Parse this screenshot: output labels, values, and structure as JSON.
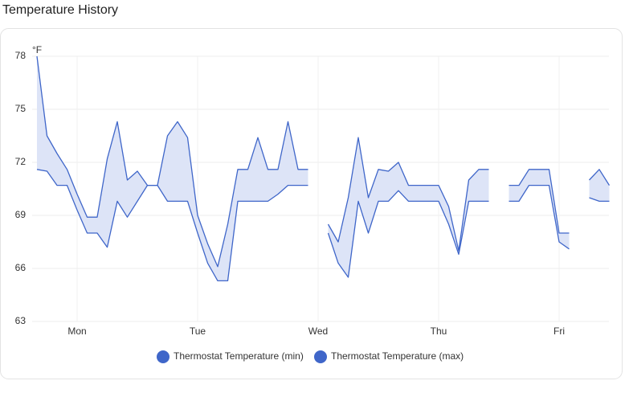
{
  "chart_data": {
    "type": "range-line",
    "title": "Temperature History",
    "y_label": "°F",
    "categories": [
      null,
      null,
      null,
      null,
      "Mon",
      null,
      null,
      null,
      null,
      null,
      null,
      null,
      null,
      null,
      null,
      null,
      "Tue",
      null,
      null,
      null,
      null,
      null,
      null,
      null,
      null,
      null,
      null,
      null,
      "Wed",
      null,
      null,
      null,
      null,
      null,
      null,
      null,
      null,
      null,
      null,
      null,
      "Thu",
      null,
      null,
      null,
      null,
      null,
      null,
      null,
      null,
      null,
      null,
      null,
      "Fri",
      null,
      null,
      null,
      null,
      null
    ],
    "series": [
      {
        "name": "Thermostat Temperature (min)",
        "color": "#3f66c9",
        "values": [
          71.6,
          71.5,
          70.7,
          70.7,
          69.3,
          68,
          68,
          67.2,
          69.8,
          68.9,
          69.8,
          70.7,
          70.7,
          69.8,
          69.8,
          69.8,
          68,
          66.3,
          65.3,
          65.3,
          69.8,
          69.8,
          69.8,
          69.8,
          70.2,
          70.7,
          70.7,
          70.7,
          null,
          68,
          66.3,
          65.5,
          69.8,
          68,
          69.8,
          69.8,
          70.4,
          69.8,
          69.8,
          69.8,
          69.8,
          68.5,
          66.8,
          69.8,
          69.8,
          69.8,
          null,
          69.8,
          69.8,
          70.7,
          70.7,
          70.7,
          67.5,
          67.1,
          null,
          70,
          69.8,
          69.8
        ]
      },
      {
        "name": "Thermostat Temperature (max)",
        "color": "#3f66c9",
        "values": [
          78,
          73.5,
          72.5,
          71.6,
          70.2,
          68.9,
          68.9,
          72.2,
          74.3,
          71,
          71.5,
          70.7,
          70.7,
          73.5,
          74.3,
          73.4,
          69,
          67.4,
          66.1,
          68.5,
          71.6,
          71.6,
          73.4,
          71.6,
          71.6,
          74.3,
          71.6,
          71.6,
          null,
          68.5,
          67.5,
          70,
          73.4,
          70,
          71.6,
          71.5,
          72,
          70.7,
          70.7,
          70.7,
          70.7,
          69.5,
          67,
          71,
          71.6,
          71.6,
          null,
          70.7,
          70.7,
          71.6,
          71.6,
          71.6,
          68,
          68,
          null,
          71,
          71.6,
          70.7
        ]
      }
    ],
    "fill_color": "#dde4f7",
    "ylim": [
      63,
      78
    ],
    "yticks": [
      63,
      66,
      69,
      72,
      75,
      78
    ],
    "grid": true
  }
}
